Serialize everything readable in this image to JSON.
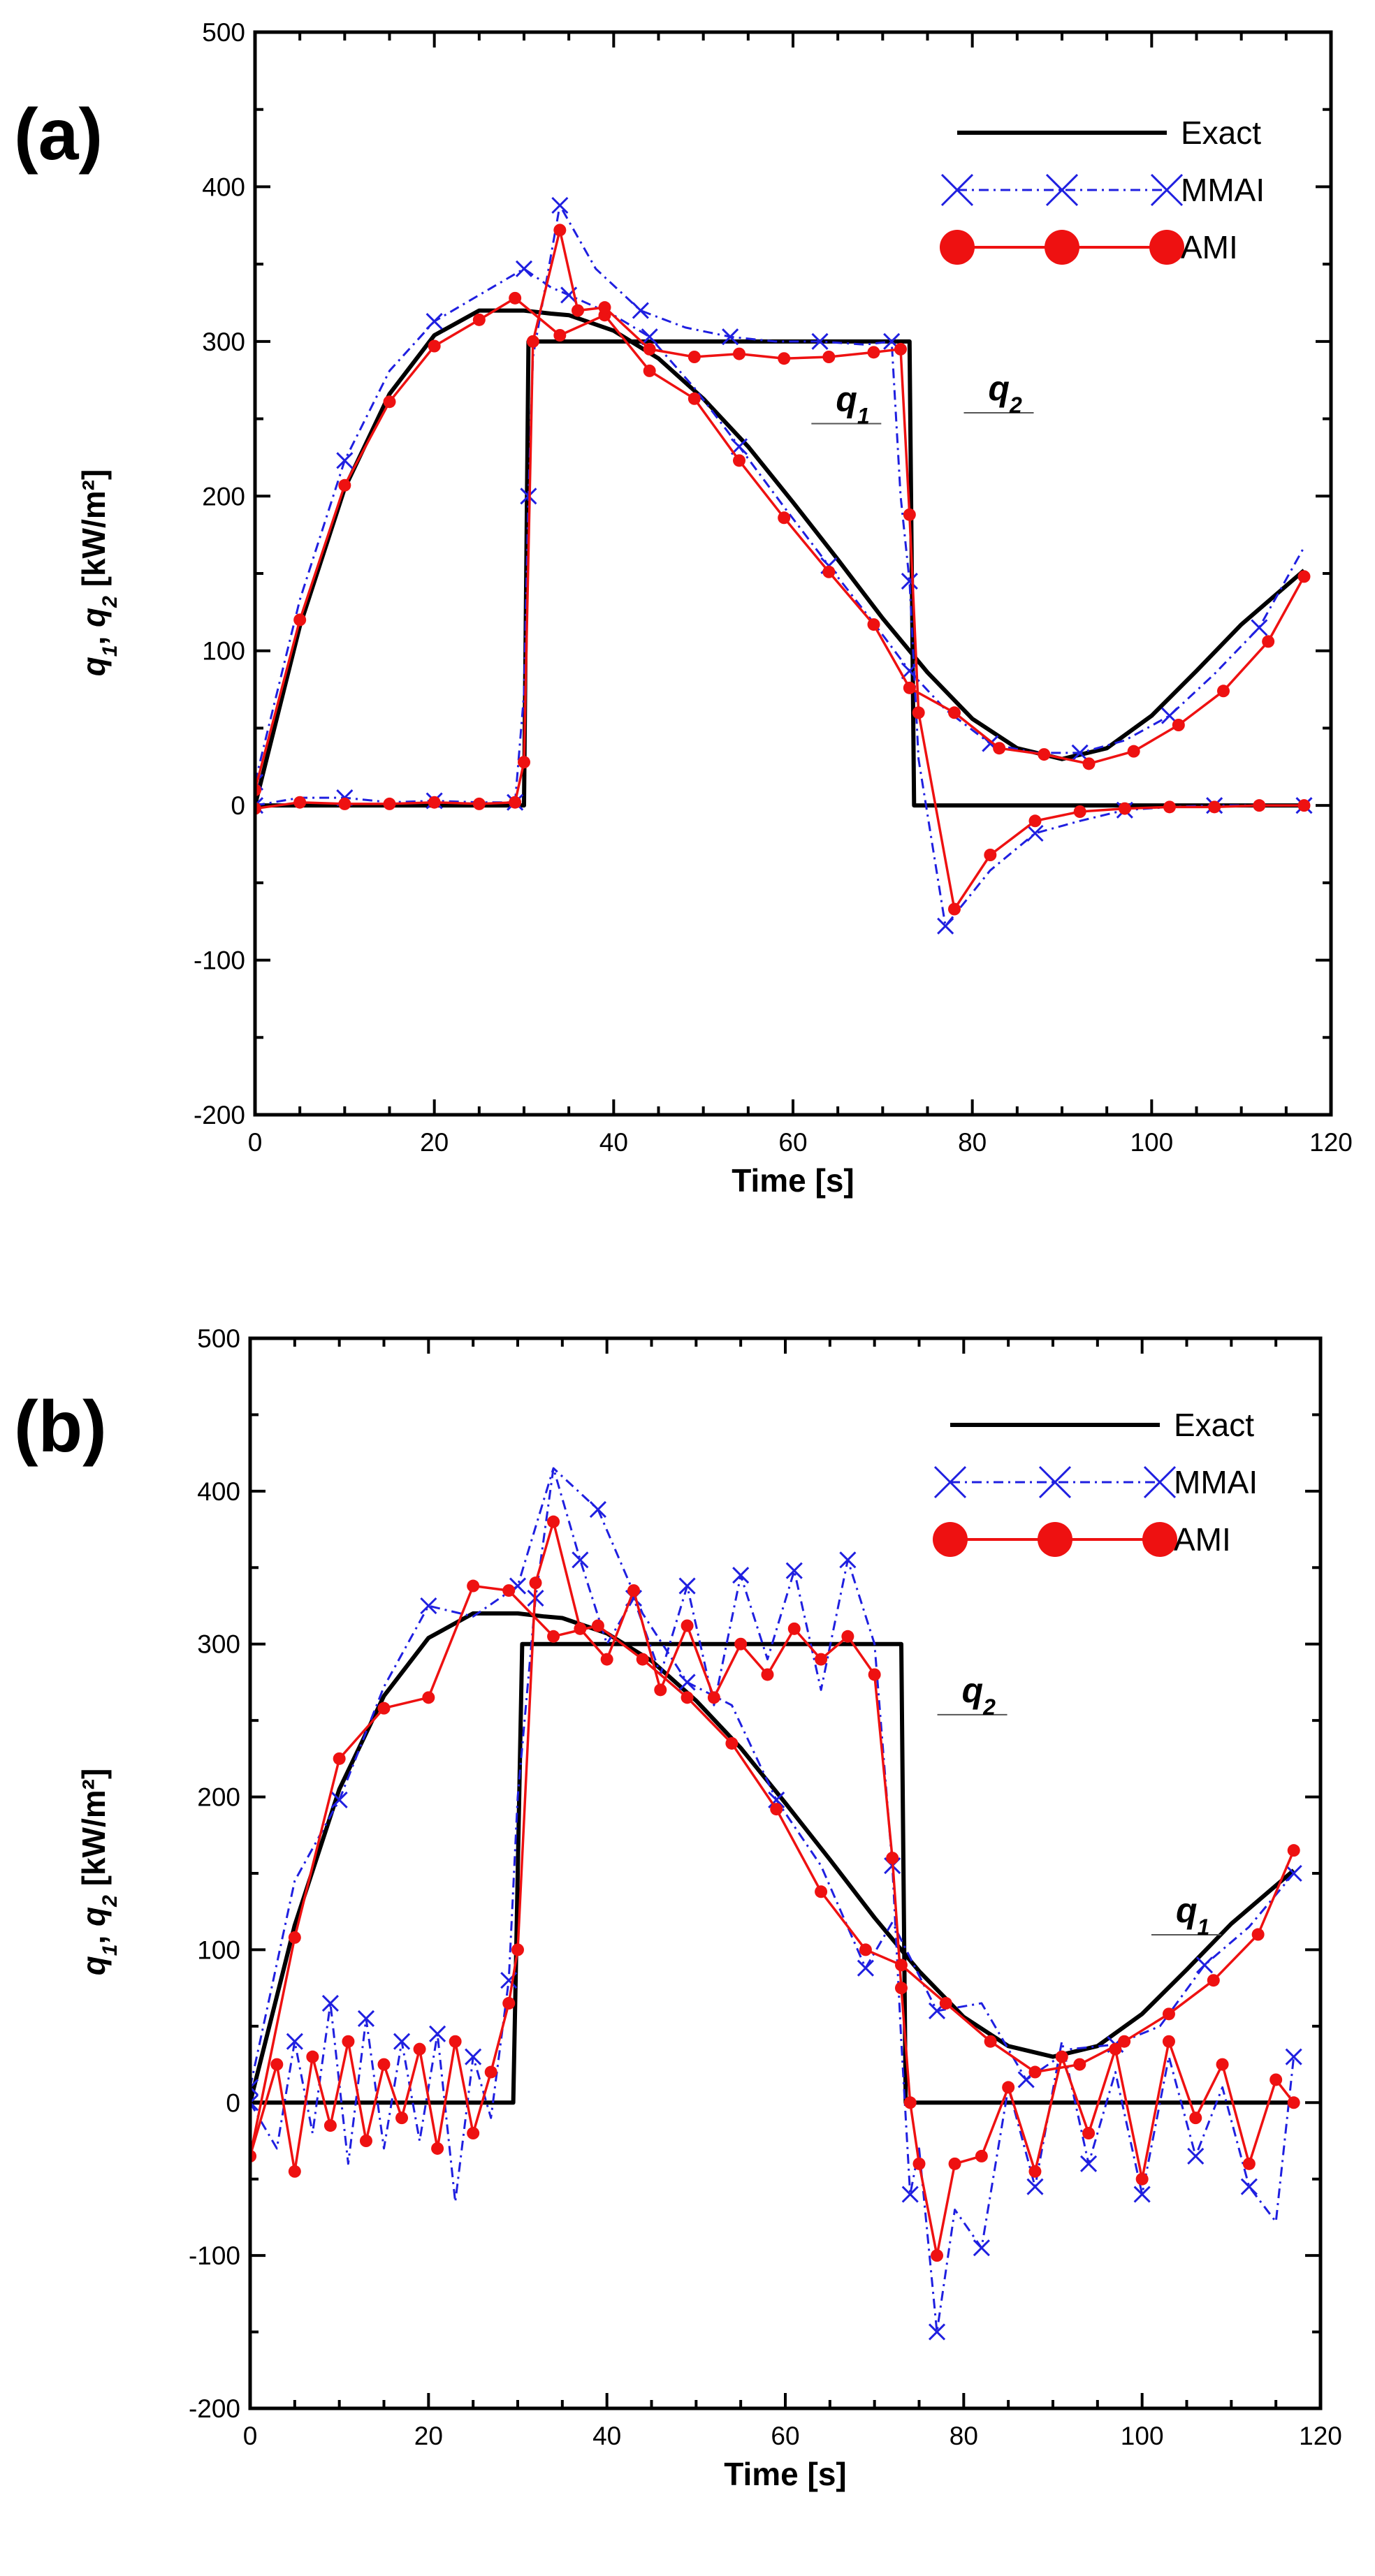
{
  "colors": {
    "exact": "#000000",
    "mmai": "#1f1fe0",
    "ami": "#ee1111"
  },
  "chart_data": [
    {
      "type": "line",
      "panel_label": "(a)",
      "xlabel": "Time [s]",
      "ylabel": {
        "q1": "q",
        "s1": "1",
        "sep": ", ",
        "q2": "q",
        "s2": "2",
        "unit": " [kW/m²]"
      },
      "xlim": [
        0,
        120
      ],
      "ylim": [
        -200,
        500
      ],
      "x_ticks": [
        0,
        20,
        40,
        60,
        80,
        100,
        120
      ],
      "y_ticks": [
        -200,
        -100,
        0,
        100,
        200,
        300,
        400,
        500
      ],
      "legend_position": "top-right",
      "legend": [
        "Exact",
        "MMAI",
        "AMI"
      ],
      "annotations": [
        {
          "text": "q",
          "sub": "1",
          "x": 64,
          "y": 255
        },
        {
          "text": "q",
          "sub": "2",
          "x": 81,
          "y": 262
        }
      ],
      "series": [
        {
          "name": "Exact",
          "curve": "q1",
          "x": [
            0,
            5,
            10,
            15,
            20,
            25,
            30,
            33,
            35,
            40,
            45,
            50,
            55,
            60,
            65,
            70,
            75,
            80,
            85,
            90,
            95,
            100,
            105,
            110,
            117
          ],
          "y": [
            0,
            116,
            205,
            266,
            304,
            320,
            320,
            318,
            317,
            307,
            289,
            263,
            232,
            196,
            159,
            121,
            86,
            56,
            37,
            30,
            37,
            58,
            87,
            117,
            152
          ]
        },
        {
          "name": "Exact",
          "curve": "q2",
          "x": [
            0,
            30,
            30.5,
            73,
            73.5,
            117
          ],
          "y": [
            0,
            0,
            300,
            300,
            0,
            0
          ]
        },
        {
          "name": "MMAI",
          "curve": "q1",
          "x": [
            0,
            5,
            10,
            15,
            20,
            25,
            30,
            33,
            35,
            40,
            44,
            49,
            54,
            59,
            64,
            69,
            73,
            77,
            82,
            87,
            92,
            97,
            102,
            107,
            112,
            117
          ],
          "y": [
            15,
            133,
            223,
            281,
            313,
            330,
            347,
            335,
            330,
            317,
            303,
            270,
            232,
            193,
            155,
            118,
            87,
            62,
            40,
            34,
            34,
            42,
            58,
            85,
            115,
            167
          ]
        },
        {
          "name": "MMAI",
          "curve": "q2",
          "x": [
            0,
            5,
            10,
            15,
            20,
            25,
            29,
            30,
            30.5,
            31,
            34,
            38,
            43,
            48,
            53,
            58,
            63,
            68,
            71,
            72,
            73,
            74,
            77,
            82,
            87,
            92,
            97,
            102,
            107,
            112,
            117
          ],
          "y": [
            0,
            5,
            5,
            2,
            3,
            2,
            2,
            72,
            200,
            290,
            388,
            347,
            320,
            309,
            303,
            300,
            300,
            298,
            300,
            200,
            145,
            30,
            -78,
            -42,
            -18,
            -10,
            -3,
            -1,
            0,
            0,
            0
          ]
        },
        {
          "name": "AMI",
          "curve": "q1",
          "x": [
            0,
            5,
            10,
            15,
            20,
            25,
            29,
            34,
            39,
            44,
            49,
            54,
            59,
            64,
            69,
            73,
            78,
            83,
            88,
            93,
            98,
            103,
            108,
            113,
            117
          ],
          "y": [
            10,
            120,
            207,
            261,
            297,
            314,
            328,
            304,
            317,
            281,
            263,
            223,
            186,
            151,
            117,
            76,
            60,
            37,
            33,
            27,
            35,
            52,
            74,
            106,
            148
          ]
        },
        {
          "name": "AMI",
          "curve": "q2",
          "x": [
            0,
            5,
            10,
            15,
            20,
            25,
            29,
            30,
            31,
            34,
            36,
            39,
            44,
            49,
            54,
            59,
            64,
            69,
            72,
            73,
            74,
            78,
            82,
            87,
            92,
            97,
            102,
            107,
            112,
            117
          ],
          "y": [
            -2,
            2,
            1,
            1,
            2,
            1,
            2,
            28,
            300,
            372,
            320,
            322,
            295,
            290,
            292,
            289,
            290,
            293,
            295,
            188,
            60,
            -67,
            -32,
            -10,
            -4,
            -2,
            -1,
            -1,
            0,
            0
          ]
        }
      ]
    },
    {
      "type": "line",
      "panel_label": "(b)",
      "xlabel": "Time [s]",
      "ylabel": {
        "q1": "q",
        "s1": "1",
        "sep": ", ",
        "q2": "q",
        "s2": "2",
        "unit": " [kW/m²]"
      },
      "xlim": [
        0,
        120
      ],
      "ylim": [
        -200,
        500
      ],
      "x_ticks": [
        0,
        20,
        40,
        60,
        80,
        100,
        120
      ],
      "y_ticks": [
        -200,
        -100,
        0,
        100,
        200,
        300,
        400,
        500
      ],
      "legend_position": "top-right",
      "legend": [
        "Exact",
        "MMAI",
        "AMI"
      ],
      "annotations": [
        {
          "text": "q",
          "sub": "2",
          "x": 79,
          "y": 262
        },
        {
          "text": "q",
          "sub": "1",
          "x": 103,
          "y": 118
        }
      ],
      "series": [
        {
          "name": "Exact",
          "curve": "q1",
          "x": [
            0,
            5,
            10,
            15,
            20,
            25,
            30,
            33,
            35,
            40,
            45,
            50,
            55,
            60,
            65,
            70,
            75,
            80,
            85,
            90,
            95,
            100,
            105,
            110,
            117
          ],
          "y": [
            0,
            116,
            205,
            266,
            304,
            320,
            320,
            318,
            317,
            307,
            289,
            263,
            232,
            196,
            159,
            121,
            86,
            56,
            37,
            30,
            37,
            58,
            87,
            117,
            152
          ]
        },
        {
          "name": "Exact",
          "curve": "q2",
          "x": [
            0,
            29.5,
            30.5,
            73,
            73.5,
            117
          ],
          "y": [
            0,
            0,
            300,
            300,
            0,
            0
          ]
        },
        {
          "name": "MMAI",
          "curve": "q1",
          "x": [
            0,
            5,
            10,
            15,
            20,
            25,
            30,
            34,
            39,
            44,
            49,
            54,
            59,
            64,
            69,
            72,
            77,
            82,
            87,
            92,
            97,
            102,
            107,
            112,
            117
          ],
          "y": [
            10,
            145,
            198,
            272,
            325,
            318,
            338,
            415,
            388,
            320,
            275,
            260,
            198,
            155,
            88,
            118,
            60,
            65,
            15,
            35,
            38,
            50,
            90,
            115,
            150
          ]
        },
        {
          "name": "MMAI",
          "curve": "q2",
          "x": [
            0,
            3,
            5,
            7,
            9,
            11,
            13,
            15,
            17,
            19,
            21,
            23,
            25,
            27,
            29,
            30,
            32,
            34,
            37,
            40,
            43,
            46,
            49,
            52,
            55,
            58,
            61,
            64,
            67,
            70,
            72,
            73,
            74,
            75,
            77,
            79,
            82,
            85,
            88,
            91,
            94,
            97,
            100,
            103,
            106,
            109,
            112,
            115,
            117
          ],
          "y": [
            0,
            -30,
            40,
            -20,
            65,
            -40,
            55,
            -30,
            40,
            -25,
            45,
            -65,
            30,
            -10,
            80,
            200,
            330,
            415,
            355,
            300,
            330,
            280,
            338,
            260,
            345,
            290,
            348,
            270,
            355,
            300,
            155,
            40,
            -60,
            -30,
            -150,
            -70,
            -95,
            10,
            -55,
            40,
            -40,
            20,
            -60,
            30,
            -35,
            10,
            -55,
            -78,
            30
          ]
        },
        {
          "name": "AMI",
          "curve": "q1",
          "x": [
            0,
            5,
            10,
            15,
            20,
            25,
            29,
            34,
            39,
            44,
            49,
            54,
            59,
            64,
            69,
            73,
            78,
            83,
            88,
            93,
            98,
            103,
            108,
            113,
            117
          ],
          "y": [
            -35,
            108,
            225,
            258,
            265,
            338,
            335,
            305,
            312,
            290,
            265,
            235,
            192,
            138,
            100,
            90,
            65,
            40,
            20,
            25,
            40,
            58,
            80,
            110,
            165
          ]
        },
        {
          "name": "AMI",
          "curve": "q2",
          "x": [
            0,
            3,
            5,
            7,
            9,
            11,
            13,
            15,
            17,
            19,
            21,
            23,
            25,
            27,
            29,
            30,
            32,
            34,
            37,
            40,
            43,
            46,
            49,
            52,
            55,
            58,
            61,
            64,
            67,
            70,
            72,
            73,
            74,
            75,
            77,
            79,
            82,
            85,
            88,
            91,
            94,
            97,
            100,
            103,
            106,
            109,
            112,
            115,
            117
          ],
          "y": [
            -35,
            25,
            -45,
            30,
            -15,
            40,
            -25,
            25,
            -10,
            35,
            -30,
            40,
            -20,
            20,
            65,
            100,
            340,
            380,
            310,
            290,
            335,
            270,
            312,
            265,
            300,
            280,
            310,
            290,
            305,
            280,
            160,
            75,
            0,
            -40,
            -100,
            -40,
            -35,
            10,
            -45,
            30,
            -20,
            35,
            -50,
            40,
            -10,
            25,
            -40,
            15,
            0
          ]
        }
      ]
    }
  ]
}
